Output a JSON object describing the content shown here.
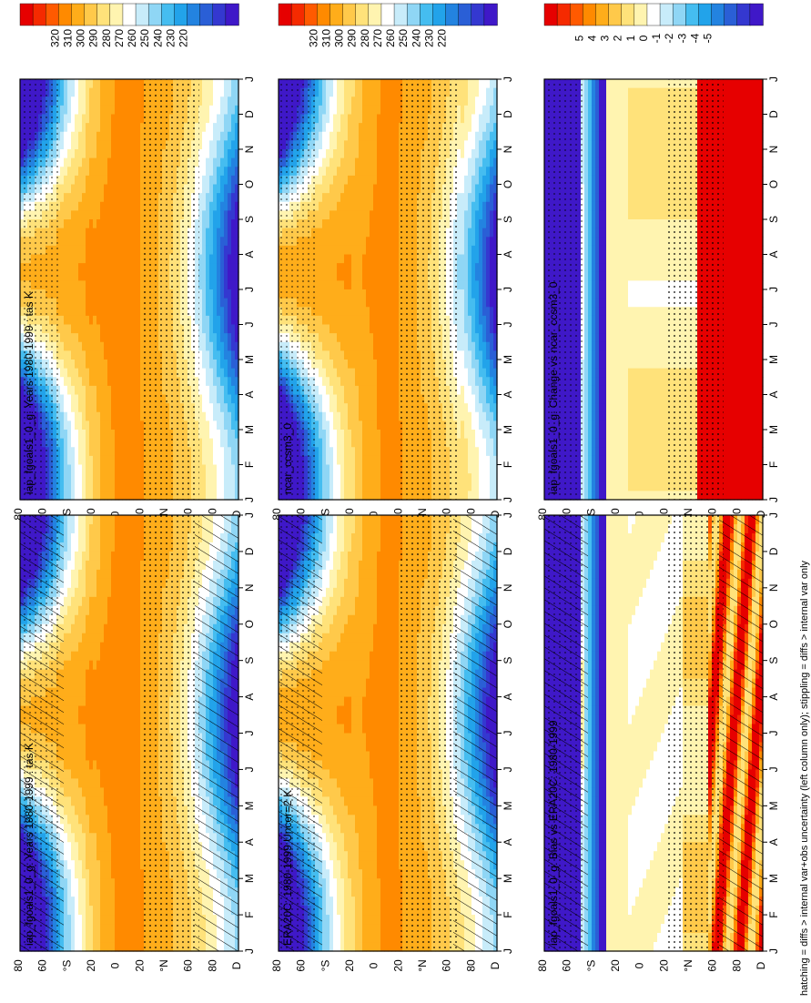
{
  "chart_data": {
    "type": "heatmap",
    "orientation": "rotated-90-clockwise",
    "footnote": "hatching = diffs > internal var+obs uncertainty (left column only); stippling = diffs > internal var only",
    "abs_scale": {
      "ticks": [
        320,
        310,
        300,
        290,
        280,
        270,
        260,
        250,
        240,
        230,
        220
      ],
      "colors": [
        "#e60000",
        "#f52a00",
        "#ff5a00",
        "#ff8a00",
        "#ffad1a",
        "#ffc94a",
        "#ffe27a",
        "#fff4b0",
        "#ffffff",
        "#c8ecfa",
        "#8fd6f5",
        "#45bdf0",
        "#22a3ea",
        "#2383e0",
        "#2a5fd6",
        "#3438d0",
        "#3f18c8"
      ],
      "range": [
        215,
        325
      ]
    },
    "diff_scale": {
      "ticks": [
        5,
        4,
        3,
        2,
        1,
        0,
        -1,
        -2,
        -3,
        -4,
        -5
      ],
      "tick_labels": [
        "5",
        "4",
        "3",
        "2",
        "1",
        "0",
        "-1",
        "-2",
        "-3",
        "-4",
        "-5"
      ],
      "colors": [
        "#e60000",
        "#f52a00",
        "#ff5a00",
        "#ff8a00",
        "#ffad1a",
        "#ffc94a",
        "#ffe27a",
        "#fff4b0",
        "#ffffff",
        "#c8ecfa",
        "#8fd6f5",
        "#45bdf0",
        "#22a3ea",
        "#2383e0",
        "#2a5fd6",
        "#3438d0",
        "#3f18c8"
      ],
      "range": [
        -5.5,
        5.5
      ]
    },
    "month_labels": [
      "J",
      "F",
      "M",
      "A",
      "M",
      "J",
      "J",
      "A",
      "S",
      "O",
      "N",
      "D",
      "J"
    ],
    "lat_labels": [
      "D",
      "80",
      "60",
      "°N",
      "20",
      "0",
      "20",
      "°S",
      "60",
      "80"
    ],
    "panels": [
      {
        "title": "iap_fgoals1_0_g: Years 1980-1999 : tas K",
        "scale": "abs",
        "hatch": true,
        "stipple": true,
        "kind": "model"
      },
      {
        "title": "iap_fgoals1_0_g: Years 1980-1999 : tas K",
        "scale": "abs",
        "hatch": false,
        "stipple": true,
        "kind": "model"
      },
      {
        "title": "ERA20C: 1980-1999 Uncer=2 K",
        "scale": "abs",
        "hatch": true,
        "stipple": true,
        "kind": "obs"
      },
      {
        "title": "ncar_ccsm3_0",
        "scale": "abs",
        "hatch": false,
        "stipple": true,
        "kind": "model2"
      },
      {
        "title": "iap_fgoals1_0_g: Bias vs ERA20C: 1980-1999",
        "scale": "diff",
        "hatch": true,
        "stipple": true,
        "kind": "bias"
      },
      {
        "title": "iap_fgoals1_0_g: Change vs ncar_ccsm3_0",
        "scale": "diff",
        "hatch": false,
        "stipple": true,
        "kind": "change"
      }
    ]
  }
}
